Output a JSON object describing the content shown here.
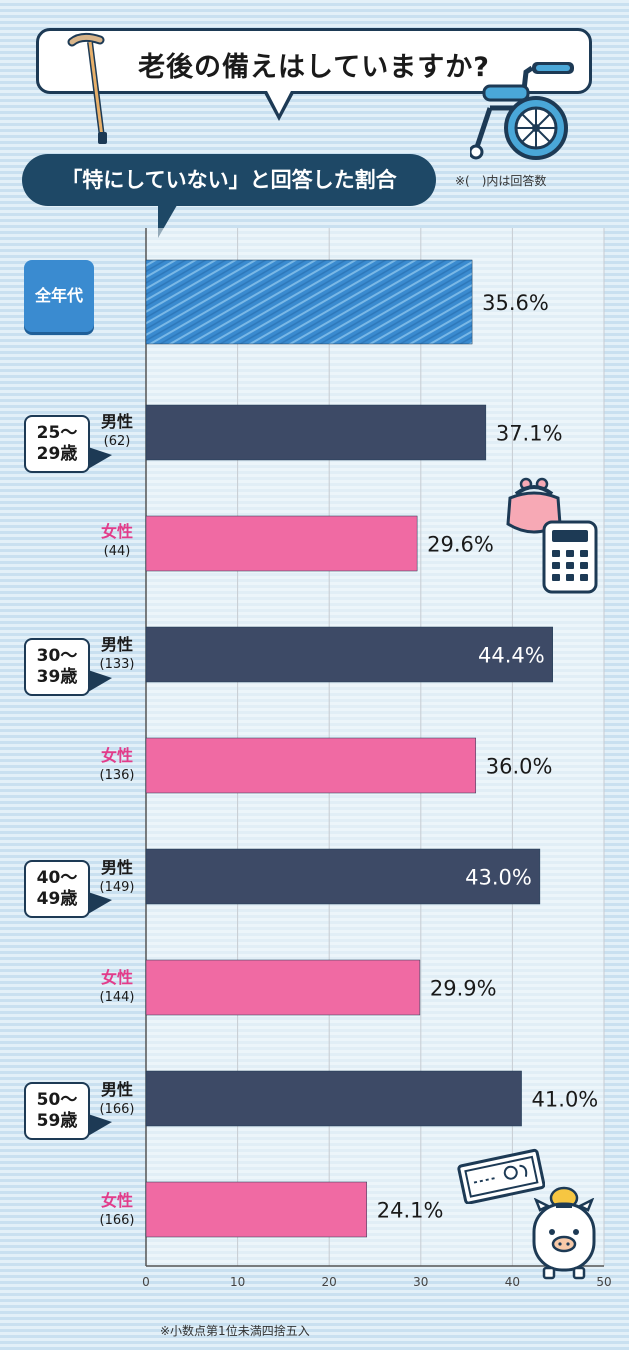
{
  "title": "老後の備えはしていますか?",
  "subtitle": "「特にしていない」と回答した割合",
  "note": "※(　)内は回答数",
  "footnote": "※小数点第1位未満四捨五入",
  "colors": {
    "all": "#3a8bd0",
    "male": "#3d4a66",
    "female": "#f06aa3",
    "axis": "#555555"
  },
  "icons": [
    "cane-icon",
    "wheelchair-icon",
    "purse-icon",
    "calculator-icon",
    "banknote-icon",
    "piggy-bank-icon",
    "coin-icon"
  ],
  "chart_data": {
    "type": "bar",
    "orientation": "horizontal",
    "xlim": [
      0,
      50
    ],
    "x_ticks": [
      0,
      10,
      20,
      30,
      40,
      50
    ],
    "grid": true,
    "unit": "%",
    "overall": {
      "label": "全年代",
      "value": 35.6,
      "value_label": "35.6%"
    },
    "groups": [
      {
        "age": "25～\n29歳",
        "bars": [
          {
            "gender": "男性",
            "n": "(62)",
            "value": 37.1,
            "value_label": "37.1%"
          },
          {
            "gender": "女性",
            "n": "(44)",
            "value": 29.6,
            "value_label": "29.6%"
          }
        ]
      },
      {
        "age": "30～\n39歳",
        "bars": [
          {
            "gender": "男性",
            "n": "(133)",
            "value": 44.4,
            "value_label": "44.4%"
          },
          {
            "gender": "女性",
            "n": "(136)",
            "value": 36.0,
            "value_label": "36.0%"
          }
        ]
      },
      {
        "age": "40～\n49歳",
        "bars": [
          {
            "gender": "男性",
            "n": "(149)",
            "value": 43.0,
            "value_label": "43.0%"
          },
          {
            "gender": "女性",
            "n": "(144)",
            "value": 29.9,
            "value_label": "29.9%"
          }
        ]
      },
      {
        "age": "50～\n59歳",
        "bars": [
          {
            "gender": "男性",
            "n": "(166)",
            "value": 41.0,
            "value_label": "41.0%"
          },
          {
            "gender": "女性",
            "n": "(166)",
            "value": 24.1,
            "value_label": "24.1%"
          }
        ]
      }
    ]
  }
}
